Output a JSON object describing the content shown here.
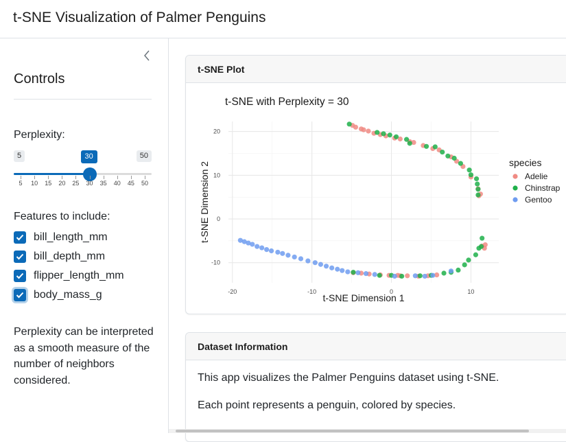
{
  "app": {
    "title": "t-SNE Visualization of Palmer Penguins"
  },
  "sidebar": {
    "collapse_icon": "chevron-left-icon",
    "title": "Controls",
    "perplexity": {
      "label": "Perplexity:",
      "min_label": "5",
      "max_label": "50",
      "value_label": "30",
      "min": 5,
      "max": 50,
      "value": 30,
      "ticks": [
        "5",
        "10",
        "15",
        "20",
        "25",
        "30",
        "35",
        "40",
        "45",
        "50"
      ]
    },
    "features": {
      "label": "Features to include:",
      "items": [
        {
          "label": "bill_length_mm",
          "checked": true
        },
        {
          "label": "bill_depth_mm",
          "checked": true
        },
        {
          "label": "flipper_length_mm",
          "checked": true
        },
        {
          "label": "body_mass_g",
          "checked": true
        }
      ]
    },
    "help_text": "Perplexity can be interpreted as a smooth measure of the number of neighbors considered."
  },
  "plot_card": {
    "header": "t-SNE Plot"
  },
  "info_card": {
    "header": "Dataset Information",
    "line1": "This app visualizes the Palmer Penguins dataset using t-SNE.",
    "line2": "Each point represents a penguin, colored by species."
  },
  "colors": {
    "accent": "#0b6ab8",
    "adelie": "#f08b84",
    "chinstrap": "#1fb04a",
    "gentoo": "#6f9cf0"
  },
  "chart_data": {
    "type": "scatter",
    "title": "t-SNE with Perplexity = 30",
    "xlabel": "t-SNE Dimension 1",
    "ylabel": "t-SNE Dimension 2",
    "xlim": [
      -20.5,
      13.5
    ],
    "ylim": [
      -14.6,
      22.3
    ],
    "xticks": [
      -20,
      -10,
      0,
      10
    ],
    "yticks": [
      -10,
      0,
      10,
      20
    ],
    "grid": true,
    "legend_title": "species",
    "legend_position": "right",
    "series": [
      {
        "name": "Adelie",
        "color": "#f08b84",
        "points": [
          [
            -4.9,
            21.4
          ],
          [
            -4.5,
            21.0
          ],
          [
            -3.8,
            20.6
          ],
          [
            -3.5,
            20.4
          ],
          [
            -2.9,
            20.1
          ],
          [
            -2.2,
            19.6
          ],
          [
            -1.4,
            19.3
          ],
          [
            -0.7,
            19.0
          ],
          [
            0.4,
            18.5
          ],
          [
            1.1,
            18.3
          ],
          [
            2.3,
            17.7
          ],
          [
            2.8,
            17.5
          ],
          [
            4.0,
            16.8
          ],
          [
            5.2,
            16.1
          ],
          [
            6.0,
            15.8
          ],
          [
            7.5,
            14.2
          ],
          [
            8.2,
            13.2
          ],
          [
            9.0,
            12.0
          ],
          [
            10.0,
            9.6
          ],
          [
            10.9,
            6.9
          ],
          [
            11.2,
            5.7
          ],
          [
            11.0,
            5.3
          ],
          [
            11.4,
            -6.2
          ],
          [
            11.7,
            -6.7
          ],
          [
            11.8,
            -5.9
          ],
          [
            -4.8,
            -12.3
          ],
          [
            -3.8,
            -12.4
          ],
          [
            -2.8,
            -12.6
          ],
          [
            -1.4,
            -12.8
          ],
          [
            -0.3,
            -12.9
          ],
          [
            0.8,
            -12.9
          ],
          [
            2.0,
            -13.0
          ],
          [
            3.4,
            -13.1
          ],
          [
            4.6,
            -13.0
          ],
          [
            5.7,
            -12.8
          ],
          [
            1.1,
            -13.0
          ]
        ]
      },
      {
        "name": "Chinstrap",
        "color": "#1fb04a",
        "points": [
          [
            -5.3,
            21.7
          ],
          [
            -1.8,
            19.8
          ],
          [
            -1.0,
            19.5
          ],
          [
            -0.2,
            19.2
          ],
          [
            0.6,
            18.8
          ],
          [
            1.9,
            18.2
          ],
          [
            2.3,
            17.3
          ],
          [
            4.4,
            16.6
          ],
          [
            5.5,
            16.5
          ],
          [
            6.4,
            15.3
          ],
          [
            7.1,
            14.4
          ],
          [
            7.9,
            13.9
          ],
          [
            8.7,
            12.7
          ],
          [
            9.8,
            11.2
          ],
          [
            10.0,
            10.1
          ],
          [
            10.7,
            9.2
          ],
          [
            10.8,
            8.0
          ],
          [
            10.9,
            6.8
          ],
          [
            10.9,
            5.5
          ],
          [
            11.4,
            -4.4
          ],
          [
            11.3,
            -6.3
          ],
          [
            11.0,
            -6.7
          ],
          [
            10.6,
            -8.2
          ],
          [
            9.7,
            -9.4
          ],
          [
            9.2,
            -10.5
          ],
          [
            8.4,
            -11.7
          ],
          [
            7.5,
            -12.2
          ],
          [
            6.6,
            -12.4
          ],
          [
            5.0,
            -12.9
          ],
          [
            3.6,
            -13.0
          ],
          [
            1.3,
            -13.1
          ],
          [
            0.0,
            -12.9
          ],
          [
            -1.5,
            -12.9
          ],
          [
            -4.8,
            -12.2
          ]
        ]
      },
      {
        "name": "Gentoo",
        "color": "#6f9cf0",
        "points": [
          [
            -19.0,
            -4.9
          ],
          [
            -18.5,
            -5.2
          ],
          [
            -18.0,
            -5.5
          ],
          [
            -17.5,
            -5.8
          ],
          [
            -16.9,
            -6.3
          ],
          [
            -16.3,
            -6.6
          ],
          [
            -15.7,
            -7.0
          ],
          [
            -15.1,
            -7.3
          ],
          [
            -14.3,
            -7.6
          ],
          [
            -13.7,
            -7.9
          ],
          [
            -13.0,
            -8.3
          ],
          [
            -12.2,
            -8.7
          ],
          [
            -11.4,
            -9.1
          ],
          [
            -10.5,
            -9.6
          ],
          [
            -9.6,
            -10.0
          ],
          [
            -8.9,
            -10.4
          ],
          [
            -8.2,
            -10.8
          ],
          [
            -7.5,
            -11.2
          ],
          [
            -6.8,
            -11.5
          ],
          [
            -6.2,
            -11.8
          ],
          [
            -5.5,
            -12.1
          ],
          [
            -4.2,
            -12.3
          ],
          [
            -3.2,
            -12.5
          ],
          [
            -2.1,
            -12.7
          ],
          [
            0.4,
            -13.1
          ],
          [
            3.0,
            -13.0
          ],
          [
            4.2,
            -13.1
          ],
          [
            5.2,
            -12.9
          ],
          [
            7.5,
            -11.9
          ]
        ]
      }
    ]
  }
}
